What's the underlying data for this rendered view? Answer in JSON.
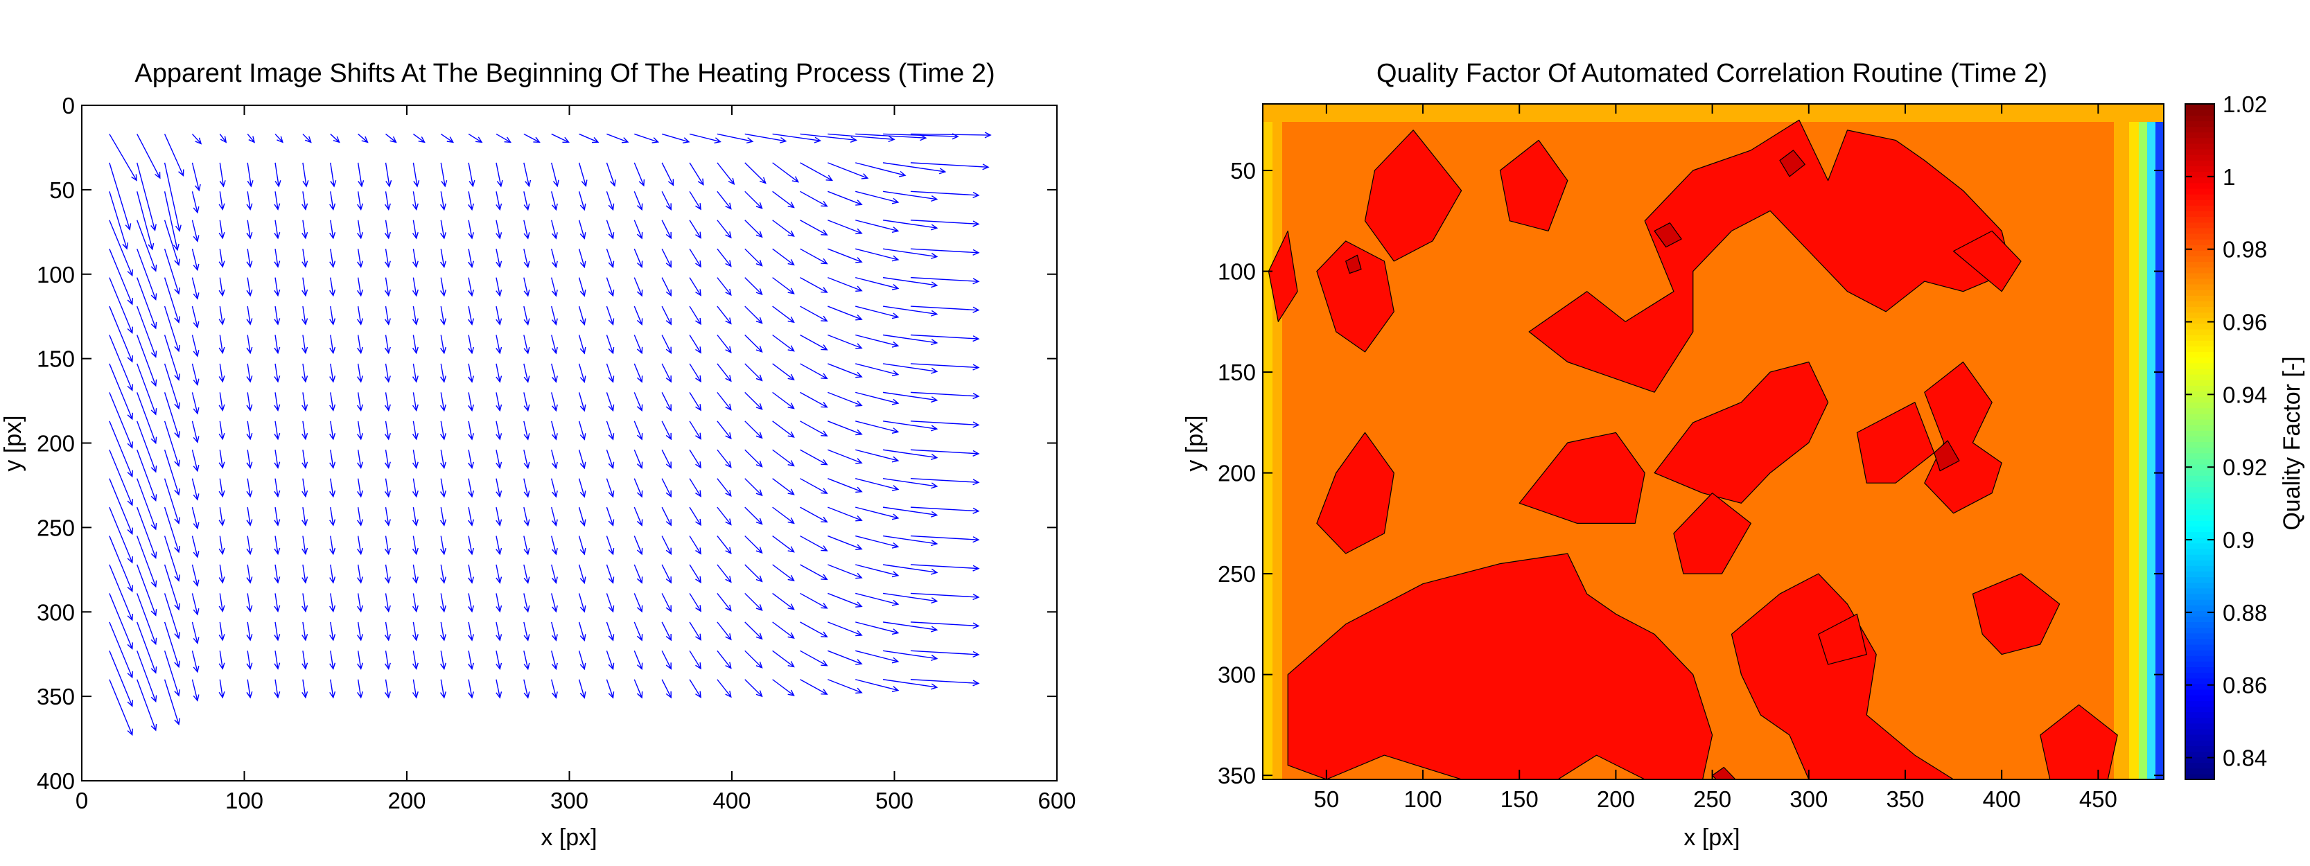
{
  "figure": {
    "background": "#ffffff"
  },
  "chart_data": [
    {
      "type": "quiver",
      "title": "Apparent Image Shifts At The Beginning Of The Heating Process (Time 2)",
      "xlabel": "x [px]",
      "ylabel": "y [px]",
      "xlim": [
        0,
        600
      ],
      "ylim": [
        0,
        400
      ],
      "y_reversed": true,
      "xticks": [
        0,
        100,
        200,
        300,
        400,
        500,
        600
      ],
      "yticks": [
        0,
        50,
        100,
        150,
        200,
        250,
        300,
        350,
        400
      ],
      "arrow_color": "#0000ff",
      "grid": {
        "x0": 17,
        "dx": 17,
        "nx": 30,
        "y0": 17,
        "dy": 17,
        "ny": 20
      },
      "field_description": "Arrows near left edge point down-right with larger magnitude; interior arrows mostly point downward with small magnitude; arrows near right edge point right and grow in length toward the right border; arrows along top row point right."
    },
    {
      "type": "contour",
      "title": "Quality Factor Of Automated Correlation Routine (Time 2)",
      "xlabel": "x [px]",
      "ylabel": "y [px]",
      "xlim": [
        17,
        484
      ],
      "ylim": [
        17,
        352
      ],
      "y_reversed": true,
      "xticks": [
        50,
        100,
        150,
        200,
        250,
        300,
        350,
        400,
        450
      ],
      "yticks": [
        50,
        100,
        150,
        200,
        250,
        300,
        350
      ],
      "colorbar": {
        "label": "Quality Factor [-]",
        "range": [
          0.834,
          1.02
        ],
        "ticks": [
          "0.84",
          "0.86",
          "0.88",
          "0.9",
          "0.92",
          "0.94",
          "0.96",
          "0.98",
          "1",
          "1.02"
        ],
        "tick_values": [
          0.84,
          0.86,
          0.88,
          0.9,
          0.92,
          0.94,
          0.96,
          0.98,
          1.0,
          1.02
        ],
        "colormap": "jet"
      },
      "levels": [
        0.84,
        0.86,
        0.88,
        0.9,
        0.92,
        0.94,
        0.96,
        0.98,
        1.0
      ],
      "background_level_value": 0.975,
      "edge_low_values": {
        "left_min": 0.88,
        "right_min": 0.84
      },
      "regions": [
        {
          "value": 0.995,
          "polys": [
            [
              [
                75,
                50
              ],
              [
                95,
                30
              ],
              [
                120,
                60
              ],
              [
                105,
                85
              ],
              [
                85,
                95
              ],
              [
                70,
                75
              ]
            ],
            [
              [
                140,
                50
              ],
              [
                160,
                35
              ],
              [
                175,
                55
              ],
              [
                165,
                80
              ],
              [
                145,
                75
              ]
            ],
            [
              [
                155,
                130
              ],
              [
                185,
                110
              ],
              [
                205,
                125
              ],
              [
                230,
                110
              ],
              [
                215,
                75
              ],
              [
                240,
                50
              ],
              [
                270,
                40
              ],
              [
                295,
                25
              ],
              [
                310,
                55
              ],
              [
                320,
                30
              ],
              [
                345,
                35
              ],
              [
                360,
                45
              ],
              [
                380,
                60
              ],
              [
                400,
                80
              ],
              [
                405,
                100
              ],
              [
                380,
                110
              ],
              [
                360,
                105
              ],
              [
                340,
                120
              ],
              [
                320,
                110
              ],
              [
                300,
                90
              ],
              [
                280,
                70
              ],
              [
                260,
                80
              ],
              [
                240,
                100
              ],
              [
                240,
                130
              ],
              [
                220,
                160
              ],
              [
                190,
                150
              ],
              [
                175,
                145
              ]
            ],
            [
              [
                220,
                200
              ],
              [
                240,
                175
              ],
              [
                265,
                165
              ],
              [
                280,
                150
              ],
              [
                300,
                145
              ],
              [
                310,
                165
              ],
              [
                300,
                185
              ],
              [
                280,
                200
              ],
              [
                265,
                215
              ],
              [
                245,
                210
              ]
            ],
            [
              [
                45,
                100
              ],
              [
                60,
                85
              ],
              [
                80,
                95
              ],
              [
                85,
                120
              ],
              [
                70,
                140
              ],
              [
                55,
                130
              ]
            ],
            [
              [
                150,
                215
              ],
              [
                175,
                185
              ],
              [
                200,
                180
              ],
              [
                215,
                200
              ],
              [
                210,
                225
              ],
              [
                180,
                225
              ]
            ],
            [
              [
                55,
                200
              ],
              [
                70,
                180
              ],
              [
                85,
                200
              ],
              [
                80,
                230
              ],
              [
                60,
                240
              ],
              [
                45,
                225
              ]
            ],
            [
              [
                325,
                180
              ],
              [
                355,
                165
              ],
              [
                365,
                190
              ],
              [
                345,
                205
              ],
              [
                330,
                205
              ]
            ],
            [
              [
                360,
                160
              ],
              [
                380,
                145
              ],
              [
                395,
                165
              ],
              [
                385,
                185
              ],
              [
                400,
                195
              ],
              [
                395,
                210
              ],
              [
                375,
                220
              ],
              [
                360,
                205
              ],
              [
                370,
                185
              ]
            ],
            [
              [
                30,
                300
              ],
              [
                60,
                275
              ],
              [
                100,
                255
              ],
              [
                140,
                245
              ],
              [
                175,
                240
              ],
              [
                185,
                260
              ],
              [
                200,
                270
              ],
              [
                220,
                280
              ],
              [
                240,
                300
              ],
              [
                250,
                330
              ],
              [
                245,
                352
              ],
              [
                215,
                352
              ],
              [
                190,
                340
              ],
              [
                170,
                352
              ],
              [
                120,
                352
              ],
              [
                80,
                340
              ],
              [
                50,
                352
              ],
              [
                30,
                345
              ]
            ],
            [
              [
                260,
                280
              ],
              [
                285,
                260
              ],
              [
                305,
                250
              ],
              [
                320,
                265
              ],
              [
                335,
                290
              ],
              [
                330,
                320
              ],
              [
                355,
                340
              ],
              [
                375,
                352
              ],
              [
                300,
                352
              ],
              [
                290,
                330
              ],
              [
                275,
                320
              ],
              [
                265,
                300
              ]
            ],
            [
              [
                385,
                260
              ],
              [
                410,
                250
              ],
              [
                430,
                265
              ],
              [
                420,
                285
              ],
              [
                400,
                290
              ],
              [
                390,
                280
              ]
            ],
            [
              [
                230,
                230
              ],
              [
                250,
                210
              ],
              [
                270,
                225
              ],
              [
                255,
                250
              ],
              [
                235,
                250
              ]
            ],
            [
              [
                420,
                330
              ],
              [
                440,
                315
              ],
              [
                460,
                330
              ],
              [
                455,
                352
              ],
              [
                425,
                352
              ]
            ],
            [
              [
                375,
                90
              ],
              [
                395,
                80
              ],
              [
                410,
                95
              ],
              [
                400,
                110
              ]
            ],
            [
              [
                20,
                100
              ],
              [
                30,
                80
              ],
              [
                35,
                110
              ],
              [
                25,
                125
              ]
            ],
            [
              [
                305,
                280
              ],
              [
                325,
                270
              ],
              [
                330,
                290
              ],
              [
                310,
                295
              ]
            ]
          ]
        },
        {
          "value": 1.005,
          "polys": [
            [
              [
                285,
                45
              ],
              [
                292,
                40
              ],
              [
                298,
                47
              ],
              [
                290,
                53
              ]
            ],
            [
              [
                220,
                80
              ],
              [
                228,
                76
              ],
              [
                234,
                84
              ],
              [
                226,
                88
              ]
            ],
            [
              [
                365,
                190
              ],
              [
                372,
                184
              ],
              [
                378,
                194
              ],
              [
                368,
                199
              ]
            ],
            [
              [
                60,
                95
              ],
              [
                66,
                92
              ],
              [
                68,
                99
              ],
              [
                62,
                101
              ]
            ],
            [
              [
                250,
                350
              ],
              [
                256,
                346
              ],
              [
                262,
                352
              ],
              [
                252,
                352
              ]
            ]
          ]
        }
      ]
    }
  ]
}
